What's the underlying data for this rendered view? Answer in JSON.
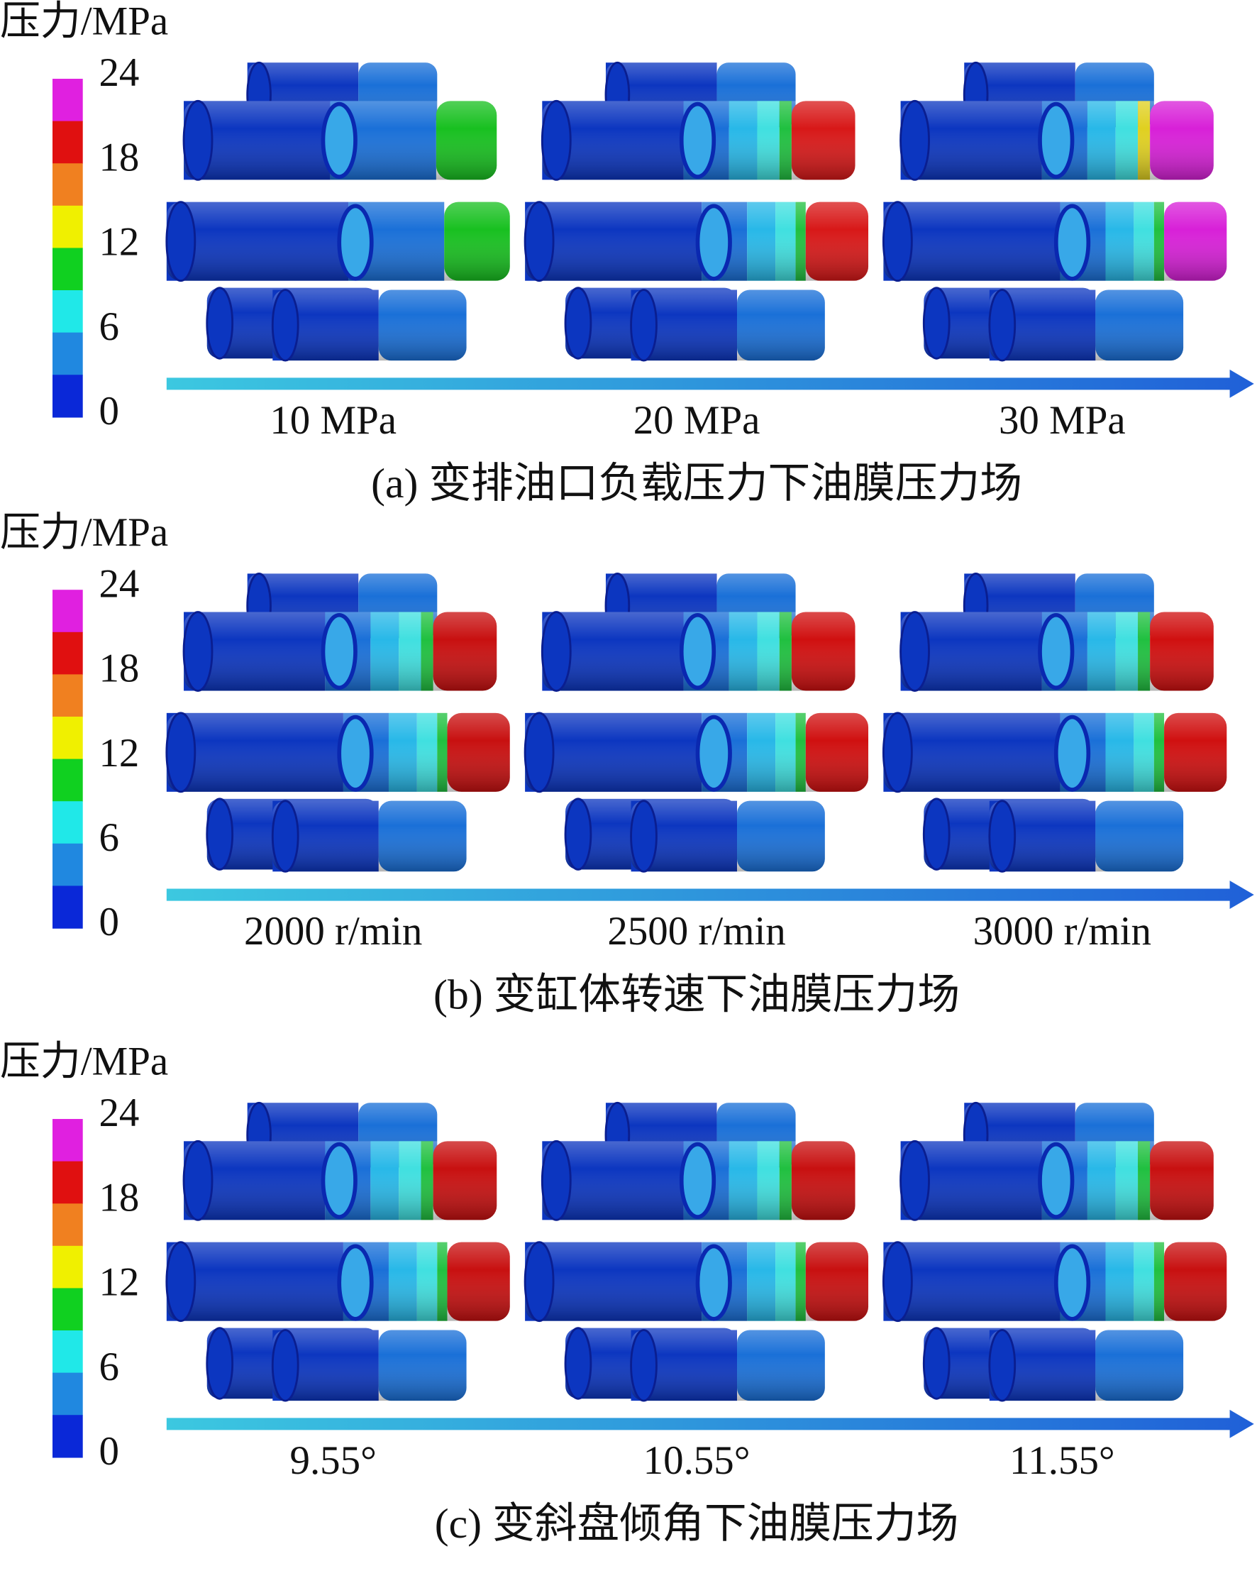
{
  "panels": [
    {
      "colorbar_title": "压力/MPa",
      "colorbar_ticks": [
        24,
        18,
        12,
        6,
        0
      ],
      "conditions": [
        "10 MPa",
        "20 MPa",
        "30 MPa"
      ],
      "caption": "(a) 变排油口负载压力下油膜压力场"
    },
    {
      "colorbar_title": "压力/MPa",
      "colorbar_ticks": [
        24,
        18,
        12,
        6,
        0
      ],
      "conditions": [
        "2000 r/min",
        "2500 r/min",
        "3000 r/min"
      ],
      "caption": "(b) 变缸体转速下油膜压力场"
    },
    {
      "colorbar_title": "压力/MPa",
      "colorbar_ticks": [
        24,
        18,
        12,
        6,
        0
      ],
      "conditions": [
        "9.55°",
        "10.55°",
        "11.55°"
      ],
      "caption": "(c) 变斜盘倾角下油膜压力场"
    }
  ]
}
